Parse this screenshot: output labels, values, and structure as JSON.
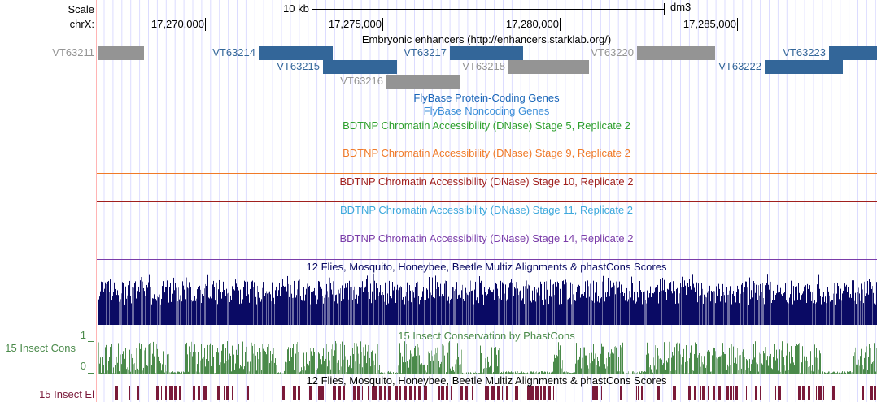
{
  "header": {
    "scale_label": "Scale",
    "chrom_label": "chrX:",
    "scale_bar_text": "10 kb",
    "assembly": "dm3",
    "ticks": [
      "17,270,000",
      "17,275,000",
      "17,280,000",
      "17,285,000"
    ]
  },
  "colors": {
    "blue_feature": "#336699",
    "gray_feature": "#949494",
    "grid": "#dcdcff",
    "left_border": "#ffb4b4"
  },
  "enhancers": {
    "title": "Embryonic enhancers (http://enhancers.starklab.org/)",
    "items": [
      {
        "name": "VT63211",
        "color": "gray"
      },
      {
        "name": "VT63214",
        "color": "blue"
      },
      {
        "name": "VT63215",
        "color": "blue"
      },
      {
        "name": "VT63216",
        "color": "gray"
      },
      {
        "name": "VT63217",
        "color": "blue"
      },
      {
        "name": "VT63218",
        "color": "gray"
      },
      {
        "name": "VT63220",
        "color": "gray"
      },
      {
        "name": "VT63222",
        "color": "blue"
      },
      {
        "name": "VT63223",
        "color": "blue"
      }
    ]
  },
  "tracks": [
    {
      "title": "FlyBase Protein-Coding Genes",
      "color": "#1a66b8"
    },
    {
      "title": "FlyBase Noncoding Genes",
      "color": "#3b8ed8"
    },
    {
      "title": "BDTNP Chromatin Accessibility (DNase) Stage 5, Replicate 2",
      "color": "#2ea02e"
    },
    {
      "title": "BDTNP Chromatin Accessibility (DNase) Stage 9, Replicate 2",
      "color": "#f07a28"
    },
    {
      "title": "BDTNP Chromatin Accessibility (DNase) Stage 10, Replicate 2",
      "color": "#a0201e"
    },
    {
      "title": "BDTNP Chromatin Accessibility (DNase) Stage 11, Replicate 2",
      "color": "#3ca8dc"
    },
    {
      "title": "BDTNP Chromatin Accessibility (DNase) Stage 14, Replicate 2",
      "color": "#7a3ca8"
    },
    {
      "title": "12 Flies, Mosquito, Honeybee, Beetle Multiz Alignments & phastCons Scores",
      "color": "#0a0a64"
    },
    {
      "title": "15 Insect Conservation by PhastCons",
      "color": "#4a8a4a"
    },
    {
      "title": "12 Flies, Mosquito, Honeybee, Beetle Multiz Alignments & phastCons Scores",
      "color": "#000000"
    }
  ],
  "side_labels": {
    "cons": "15 Insect Cons",
    "cons_max": "1",
    "cons_min": "0",
    "elements": "15 Insect El"
  }
}
